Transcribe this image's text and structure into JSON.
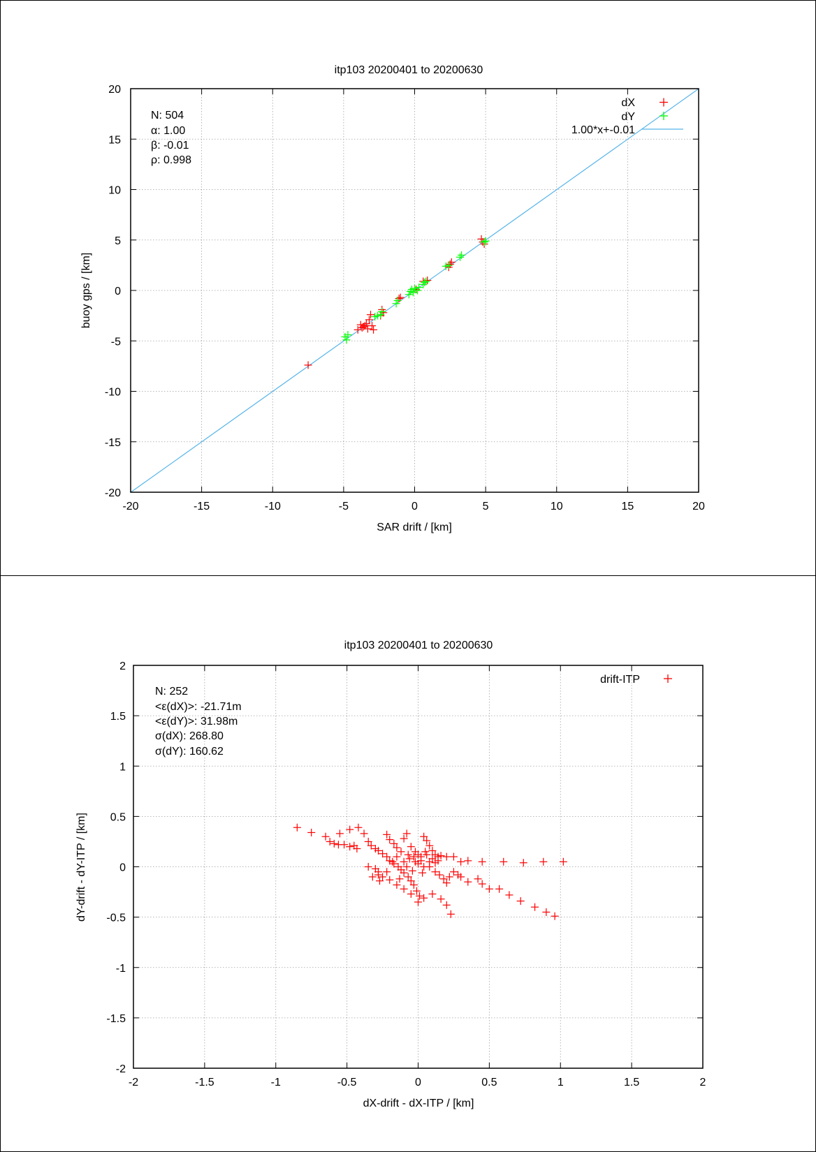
{
  "charts": [
    {
      "title": "itp103 20200401 to 20200630",
      "xlabel": "SAR drift / [km]",
      "ylabel": "buoy gps / [km]",
      "xticks": [
        "-20",
        "-15",
        "-10",
        "-5",
        "0",
        "5",
        "10",
        "15",
        "20"
      ],
      "yticks": [
        "-20",
        "-15",
        "-10",
        "-5",
        "0",
        "5",
        "10",
        "15",
        "20"
      ],
      "stats": [
        "N: 504",
        "α: 1.00",
        "β: -0.01",
        "ρ: 0.998"
      ],
      "legend": [
        "dX",
        "dY",
        "1.00*x+-0.01"
      ]
    },
    {
      "title": "itp103 20200401 to 20200630",
      "xlabel": "dX-drift - dX-ITP / [km]",
      "ylabel": "dY-drift - dY-ITP / [km]",
      "xticks": [
        "-2",
        "-1.5",
        "-1",
        "-0.5",
        "0",
        "0.5",
        "1",
        "1.5",
        "2"
      ],
      "yticks": [
        "-2",
        "-1.5",
        "-1",
        "-0.5",
        "0",
        "0.5",
        "1",
        "1.5",
        "2"
      ],
      "stats": [
        "N: 252",
        "<ε(dX)>:  -21.71m",
        "<ε(dY)>: 31.98m",
        "σ(dX):  268.80",
        "σ(dY):  160.62"
      ],
      "legend": [
        "drift-ITP"
      ]
    }
  ],
  "chart_data": [
    {
      "type": "scatter",
      "title": "itp103 20200401 to 20200630",
      "xlabel": "SAR drift / [km]",
      "ylabel": "buoy gps / [km]",
      "xlim": [
        -20,
        20
      ],
      "ylim": [
        -20,
        20
      ],
      "grid": true,
      "legend_position": "top-right",
      "colors": {
        "dX": "#ff0000",
        "dY": "#00ff00",
        "fit": "#56b4e9"
      },
      "series": [
        {
          "name": "dX",
          "points": [
            [
              -7.5,
              -7.4
            ],
            [
              -4.0,
              -3.9
            ],
            [
              -3.8,
              -3.4
            ],
            [
              -3.6,
              -3.6
            ],
            [
              -3.4,
              -3.3
            ],
            [
              -3.3,
              -3.8
            ],
            [
              -3.2,
              -2.9
            ],
            [
              -3.1,
              -2.4
            ],
            [
              -3.0,
              -3.5
            ],
            [
              -2.9,
              -3.9
            ],
            [
              -3.5,
              -3.5
            ],
            [
              -3.7,
              -3.7
            ],
            [
              -2.4,
              -2.5
            ],
            [
              -2.3,
              -1.9
            ],
            [
              -2.2,
              -2.2
            ],
            [
              -1.1,
              -0.8
            ],
            [
              -1.0,
              -0.7
            ],
            [
              0.1,
              0.1
            ],
            [
              0.6,
              0.9
            ],
            [
              0.9,
              1.0
            ],
            [
              2.4,
              2.3
            ],
            [
              2.5,
              2.6
            ],
            [
              2.6,
              2.8
            ],
            [
              4.7,
              5.1
            ],
            [
              4.8,
              4.8
            ],
            [
              4.9,
              4.6
            ]
          ]
        },
        {
          "name": "dY",
          "points": [
            [
              -4.9,
              -4.6
            ],
            [
              -4.8,
              -4.9
            ],
            [
              -4.7,
              -4.4
            ],
            [
              -2.8,
              -2.6
            ],
            [
              -2.6,
              -2.5
            ],
            [
              -2.4,
              -2.4
            ],
            [
              -2.3,
              -2.1
            ],
            [
              -1.3,
              -1.3
            ],
            [
              -1.2,
              -1.0
            ],
            [
              -0.4,
              -0.4
            ],
            [
              -0.3,
              -0.1
            ],
            [
              -0.2,
              0.1
            ],
            [
              -0.1,
              -0.2
            ],
            [
              0.0,
              0.2
            ],
            [
              0.2,
              0.0
            ],
            [
              0.3,
              0.3
            ],
            [
              0.6,
              0.6
            ],
            [
              0.7,
              0.8
            ],
            [
              0.8,
              0.9
            ],
            [
              2.2,
              2.4
            ],
            [
              2.4,
              2.5
            ],
            [
              3.2,
              3.3
            ],
            [
              3.3,
              3.5
            ],
            [
              4.9,
              4.8
            ],
            [
              5.0,
              4.9
            ]
          ]
        },
        {
          "name": "1.00*x+-0.01",
          "type": "line",
          "slope": 1.0,
          "intercept": -0.01
        }
      ]
    },
    {
      "type": "scatter",
      "title": "itp103 20200401 to 20200630",
      "xlabel": "dX-drift - dX-ITP / [km]",
      "ylabel": "dY-drift - dY-ITP / [km]",
      "xlim": [
        -2,
        2
      ],
      "ylim": [
        -2,
        2
      ],
      "grid": true,
      "legend_position": "top-right",
      "colors": {
        "drift-ITP": "#ff0000"
      },
      "series": [
        {
          "name": "drift-ITP",
          "points": [
            [
              -0.85,
              0.39
            ],
            [
              -0.75,
              0.34
            ],
            [
              -0.65,
              0.3
            ],
            [
              -0.62,
              0.25
            ],
            [
              -0.59,
              0.23
            ],
            [
              -0.56,
              0.22
            ],
            [
              -0.52,
              0.22
            ],
            [
              -0.48,
              0.2
            ],
            [
              -0.45,
              0.21
            ],
            [
              -0.43,
              0.18
            ],
            [
              -0.55,
              0.33
            ],
            [
              -0.48,
              0.37
            ],
            [
              -0.42,
              0.39
            ],
            [
              -0.38,
              0.33
            ],
            [
              -0.35,
              0.25
            ],
            [
              -0.33,
              0.21
            ],
            [
              -0.3,
              0.18
            ],
            [
              -0.28,
              0.16
            ],
            [
              -0.25,
              0.13
            ],
            [
              -0.22,
              0.1
            ],
            [
              -0.2,
              0.06
            ],
            [
              -0.17,
              0.03
            ],
            [
              -0.14,
              0.0
            ],
            [
              -0.12,
              -0.03
            ],
            [
              -0.1,
              -0.06
            ],
            [
              -0.07,
              -0.1
            ],
            [
              -0.05,
              -0.14
            ],
            [
              -0.03,
              -0.18
            ],
            [
              -0.01,
              -0.24
            ],
            [
              0.01,
              -0.29
            ],
            [
              0.04,
              -0.31
            ],
            [
              0.0,
              -0.35
            ],
            [
              -0.05,
              -0.27
            ],
            [
              -0.1,
              -0.22
            ],
            [
              -0.15,
              -0.18
            ],
            [
              -0.2,
              -0.13
            ],
            [
              -0.25,
              -0.1
            ],
            [
              -0.28,
              -0.08
            ],
            [
              -0.22,
              0.32
            ],
            [
              -0.2,
              0.27
            ],
            [
              -0.17,
              0.23
            ],
            [
              -0.15,
              0.19
            ],
            [
              -0.12,
              0.15
            ],
            [
              -0.1,
              0.28
            ],
            [
              -0.08,
              0.33
            ],
            [
              -0.05,
              0.2
            ],
            [
              -0.02,
              0.15
            ],
            [
              0.0,
              0.12
            ],
            [
              0.02,
              0.1
            ],
            [
              0.04,
              0.3
            ],
            [
              0.06,
              0.26
            ],
            [
              0.08,
              0.21
            ],
            [
              0.1,
              0.16
            ],
            [
              0.12,
              0.12
            ],
            [
              0.14,
              0.1
            ],
            [
              0.16,
              0.11
            ],
            [
              0.2,
              0.1
            ],
            [
              0.25,
              0.1
            ],
            [
              0.3,
              0.05
            ],
            [
              0.35,
              0.06
            ],
            [
              0.45,
              0.05
            ],
            [
              0.6,
              0.05
            ],
            [
              0.74,
              0.04
            ],
            [
              0.88,
              0.05
            ],
            [
              1.02,
              0.05
            ],
            [
              0.08,
              0.0
            ],
            [
              0.12,
              -0.05
            ],
            [
              0.15,
              -0.08
            ],
            [
              0.18,
              -0.12
            ],
            [
              0.2,
              -0.16
            ],
            [
              0.22,
              -0.1
            ],
            [
              0.25,
              -0.05
            ],
            [
              0.28,
              -0.08
            ],
            [
              0.3,
              -0.1
            ],
            [
              0.35,
              -0.15
            ],
            [
              0.42,
              -0.12
            ],
            [
              0.45,
              -0.17
            ],
            [
              0.5,
              -0.22
            ],
            [
              0.57,
              -0.22
            ],
            [
              0.64,
              -0.28
            ],
            [
              0.72,
              -0.34
            ],
            [
              0.82,
              -0.4
            ],
            [
              0.9,
              -0.45
            ],
            [
              0.96,
              -0.49
            ],
            [
              0.16,
              -0.32
            ],
            [
              0.2,
              -0.38
            ],
            [
              0.23,
              -0.47
            ],
            [
              0.1,
              -0.27
            ],
            [
              -0.35,
              0.0
            ],
            [
              -0.3,
              -0.02
            ],
            [
              -0.28,
              -0.05
            ],
            [
              -0.32,
              -0.1
            ],
            [
              -0.27,
              -0.14
            ],
            [
              -0.22,
              -0.05
            ],
            [
              -0.18,
              0.05
            ],
            [
              -0.15,
              0.1
            ],
            [
              -0.13,
              -0.12
            ],
            [
              -0.1,
              0.05
            ],
            [
              -0.08,
              0.0
            ],
            [
              -0.06,
              0.08
            ],
            [
              -0.04,
              -0.04
            ],
            [
              -0.02,
              0.05
            ],
            [
              0.0,
              0.03
            ],
            [
              0.02,
              0.06
            ],
            [
              0.04,
              0.0
            ],
            [
              0.06,
              0.12
            ],
            [
              0.08,
              0.05
            ],
            [
              0.1,
              0.08
            ],
            [
              0.12,
              0.04
            ],
            [
              0.14,
              0.06
            ],
            [
              0.03,
              -0.06
            ],
            [
              -0.03,
              0.1
            ],
            [
              -0.07,
              0.12
            ],
            [
              0.05,
              0.15
            ]
          ]
        }
      ]
    }
  ]
}
